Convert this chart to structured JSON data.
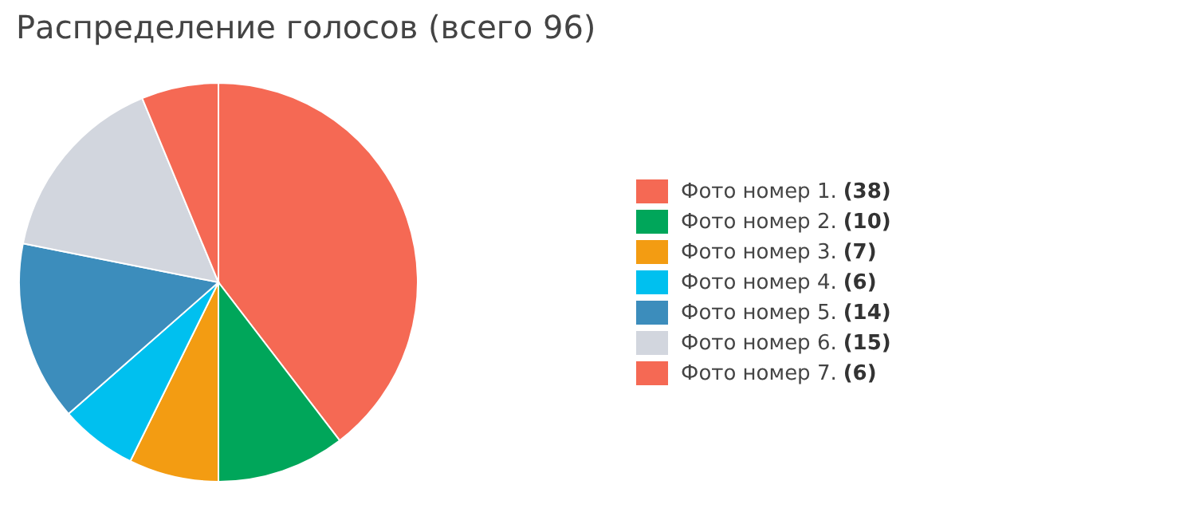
{
  "chart_data": {
    "type": "pie",
    "title": "Распределение голосов (всего 96)",
    "categories": [
      "Фото номер 1.",
      "Фото номер 2.",
      "Фото номер 3.",
      "Фото номер 4.",
      "Фото номер 5.",
      "Фото номер 6.",
      "Фото номер 7."
    ],
    "values": [
      38,
      10,
      7,
      6,
      14,
      15,
      6
    ],
    "value_labels": [
      "(38)",
      "(10)",
      "(7)",
      "(6)",
      "(14)",
      "(15)",
      "(6)"
    ],
    "colors": [
      "#f56954",
      "#00a65a",
      "#f39c12",
      "#00c0ef",
      "#3c8dbc",
      "#d2d6de",
      "#f56954"
    ],
    "legend": "right"
  }
}
